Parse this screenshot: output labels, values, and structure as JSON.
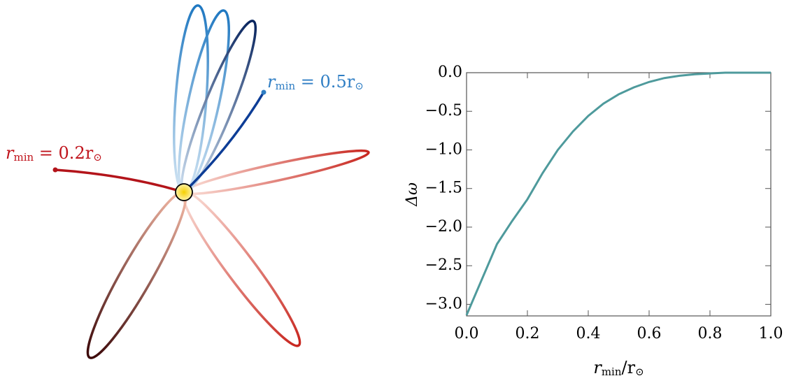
{
  "orbit_diagram": {
    "labels": [
      {
        "parts": [
          "r",
          "min",
          " = 0.5r",
          "⊙"
        ],
        "color": "#2f7ec4"
      },
      {
        "parts": [
          "r",
          "min",
          " = 0.2r",
          "⊙"
        ],
        "color": "#c0141c"
      }
    ]
  },
  "chart_data": {
    "type": "line",
    "x_label": [
      "r",
      "min",
      "/r",
      "⊙"
    ],
    "y_label": "Δω",
    "series": [
      {
        "color": "#4e9a9c",
        "x": [
          0,
          0.05,
          0.1,
          0.15,
          0.2,
          0.25,
          0.3,
          0.35,
          0.4,
          0.45,
          0.5,
          0.55,
          0.6,
          0.65,
          0.7,
          0.75,
          0.8,
          0.85,
          0.9,
          0.95,
          1.0
        ],
        "values": [
          -3.14,
          -2.68,
          -2.22,
          -1.92,
          -1.64,
          -1.3,
          -1.0,
          -0.76,
          -0.56,
          -0.4,
          -0.28,
          -0.19,
          -0.12,
          -0.07,
          -0.04,
          -0.02,
          -0.01,
          0,
          0,
          0,
          0
        ]
      }
    ],
    "xlim": [
      0,
      1
    ],
    "ylim": [
      -3.15,
      0
    ],
    "xticks": [
      {
        "value": 0,
        "label": "0.0"
      },
      {
        "value": 0.2,
        "label": "0.2"
      },
      {
        "value": 0.4,
        "label": "0.4"
      },
      {
        "value": 0.6,
        "label": "0.6"
      },
      {
        "value": 0.8,
        "label": "0.8"
      },
      {
        "value": 1,
        "label": "1.0"
      }
    ],
    "yticks": [
      {
        "value": 0,
        "label": "0.0"
      },
      {
        "value": -0.5,
        "label": "−0.5"
      },
      {
        "value": -1,
        "label": "−1.0"
      },
      {
        "value": -1.5,
        "label": "−1.5"
      },
      {
        "value": -2,
        "label": "−2.0"
      },
      {
        "value": -2.5,
        "label": "−2.5"
      },
      {
        "value": -3,
        "label": "−3.0"
      }
    ]
  }
}
